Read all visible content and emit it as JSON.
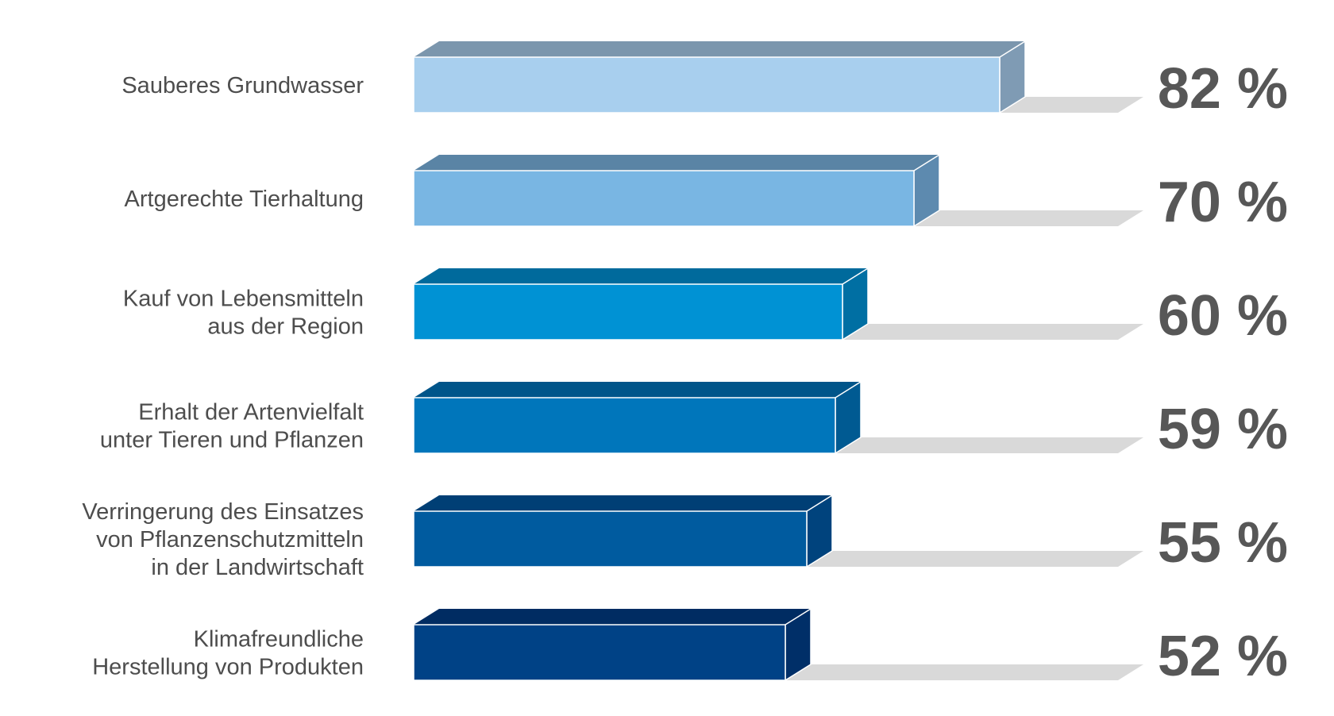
{
  "chart_data": {
    "type": "bar",
    "orientation": "horizontal",
    "style": "3d",
    "title": "",
    "xlabel": "",
    "ylabel": "",
    "categories": [
      [
        "Sauberes Grundwasser"
      ],
      [
        "Artgerechte Tierhaltung"
      ],
      [
        "Kauf von Lebensmitteln",
        "aus der Region"
      ],
      [
        "Erhalt der Artenvielfalt",
        "unter Tieren und Pflanzen"
      ],
      [
        "Verringerung des Einsatzes",
        "von Pflanzenschutzmitteln",
        "in der Landwirtschaft"
      ],
      [
        "Klimafreundliche",
        "Herstellung von Produkten"
      ]
    ],
    "values": [
      82,
      70,
      60,
      59,
      55,
      52
    ],
    "value_labels": [
      "82 %",
      "70 %",
      "60 %",
      "59 %",
      "55 %",
      "52 %"
    ],
    "unit": "%",
    "xlim": [
      0,
      100
    ],
    "grid": false,
    "legend": "none",
    "colors": {
      "front": [
        "#a8cfee",
        "#79b6e3",
        "#0092d4",
        "#0076bb",
        "#005b9f",
        "#004286"
      ],
      "top": [
        "#7b96ad",
        "#5a84a5",
        "#006a9c",
        "#00558a",
        "#003f75",
        "#002c62"
      ],
      "side": [
        "#7f9bb4",
        "#5d8aaf",
        "#006fa3",
        "#005a92",
        "#00437d",
        "#002f68"
      ],
      "shadow": "#d9d9d9",
      "category_text": "#4d4d4d",
      "value_text": "#575757"
    }
  }
}
